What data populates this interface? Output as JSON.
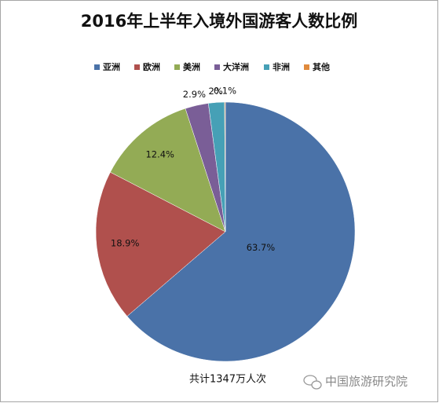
{
  "chart_data": {
    "type": "pie",
    "title": "2016年上半年入境外国游客人数比例",
    "categories": [
      "亚洲",
      "欧洲",
      "美洲",
      "大洋洲",
      "非洲",
      "其他"
    ],
    "values": [
      63.7,
      18.9,
      12.4,
      2.9,
      2,
      0.1
    ],
    "value_labels": [
      "63.7%",
      "18.9%",
      "12.4%",
      "2.9%",
      "2%",
      "0.1%"
    ],
    "colors": [
      "#4a72a8",
      "#b0504d",
      "#93ab55",
      "#7a5e97",
      "#46a0b6",
      "#e08a3c"
    ],
    "legend": "top",
    "annotation": "共计1347万人次",
    "watermark": "中国旅游研究院"
  }
}
